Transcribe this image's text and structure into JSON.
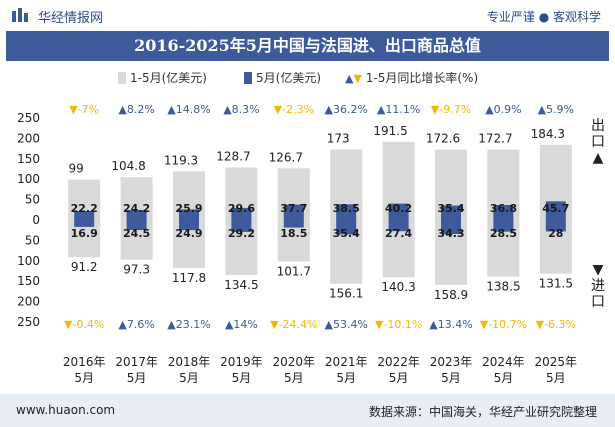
{
  "header": {
    "brand": "华经情报网",
    "tagline": "专业严谨 ● 客观科学"
  },
  "colors": {
    "title_bg": "#3d5a9a",
    "ytd_bar": "#d9d9d9",
    "month_bar": "#3d5a9a",
    "up": "#3d5a9a",
    "down": "#f2b705"
  },
  "chart_data": {
    "type": "bar",
    "title": "2016-2025年5月中国与法国进、出口商品总值",
    "legend": {
      "ytd": "1-5月(亿美元)",
      "month": "5月(亿美元)",
      "growth": "1-5月同比增长率(%)"
    },
    "side_labels": {
      "export": "出口▲",
      "import": "▼进口"
    },
    "categories": [
      "2016年\n5月",
      "2017年\n5月",
      "2018年\n5月",
      "2019年\n5月",
      "2020年\n5月",
      "2021年\n5月",
      "2022年\n5月",
      "2023年\n5月",
      "2024年\n5月",
      "2025年\n5月"
    ],
    "ylim": [
      -250,
      250
    ],
    "yticks": [
      "250",
      "200",
      "150",
      "100",
      "50",
      "0",
      "50",
      "100",
      "150",
      "200",
      "250"
    ],
    "series": [
      {
        "name": "1-5月(亿美元) 出口",
        "values": [
          99,
          104.8,
          119.3,
          128.7,
          126.7,
          173,
          191.5,
          172.6,
          172.7,
          184.3
        ]
      },
      {
        "name": "5月(亿美元) 出口",
        "values": [
          22.2,
          24.2,
          25.9,
          29.6,
          37.7,
          38.5,
          40.2,
          35.4,
          36.8,
          45.7
        ]
      },
      {
        "name": "1-5月(亿美元) 进口",
        "values": [
          91.2,
          97.3,
          117.8,
          134.5,
          101.7,
          156.1,
          140.3,
          158.9,
          138.5,
          131.5
        ]
      },
      {
        "name": "5月(亿美元) 进口",
        "values": [
          16.9,
          24.5,
          24.9,
          29.2,
          18.5,
          35.4,
          27.4,
          34.3,
          28.5,
          28
        ]
      }
    ],
    "export_growth": [
      "-7%",
      "8.2%",
      "14.8%",
      "8.3%",
      "-2.3%",
      "36.2%",
      "11.1%",
      "-9.7%",
      "0.9%",
      "5.9%"
    ],
    "import_growth": [
      "-0.4%",
      "7.6%",
      "23.1%",
      "14%",
      "-24.4%",
      "53.4%",
      "-10.1%",
      "13.4%",
      "-10.7%",
      "-6.3%"
    ]
  },
  "footer": {
    "website": "www.huaon.com",
    "source": "数据来源：中国海关，华经产业研究院整理"
  }
}
